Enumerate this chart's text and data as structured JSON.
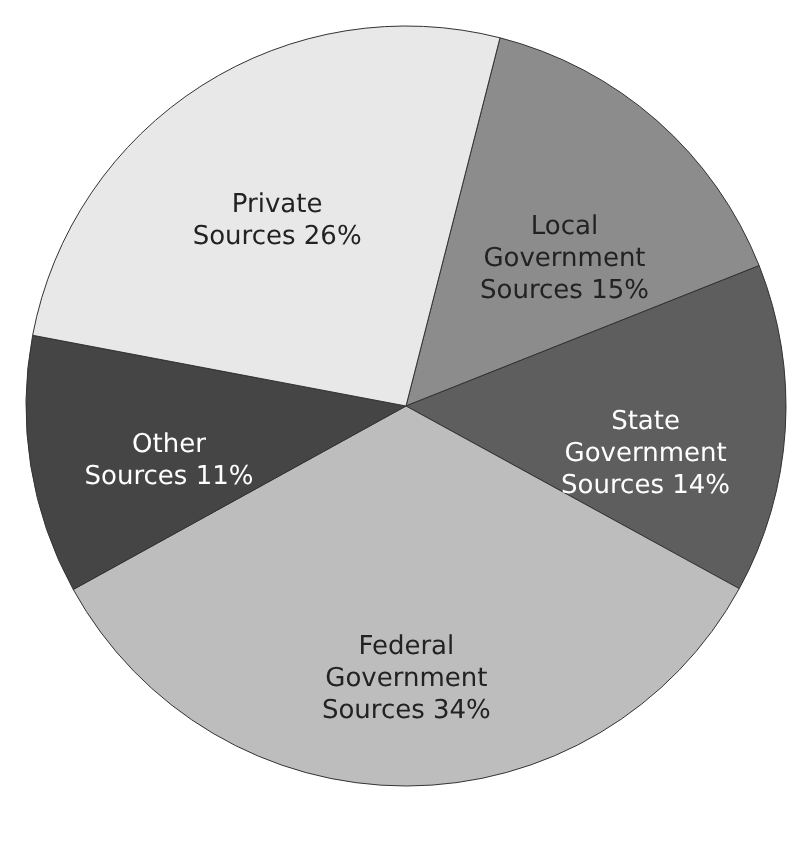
{
  "chart_data": {
    "type": "pie",
    "categories": [
      "Local Government Sources",
      "State Government Sources",
      "Federal Government Sources",
      "Other Sources",
      "Private Sources"
    ],
    "values": [
      15,
      14,
      34,
      11,
      26
    ],
    "value_labels": [
      "15%",
      "14%",
      "34%",
      "11%",
      "26%"
    ],
    "colors": [
      "#8c8c8c",
      "#5e5e5e",
      "#bdbdbd",
      "#454545",
      "#e8e8e8"
    ]
  }
}
